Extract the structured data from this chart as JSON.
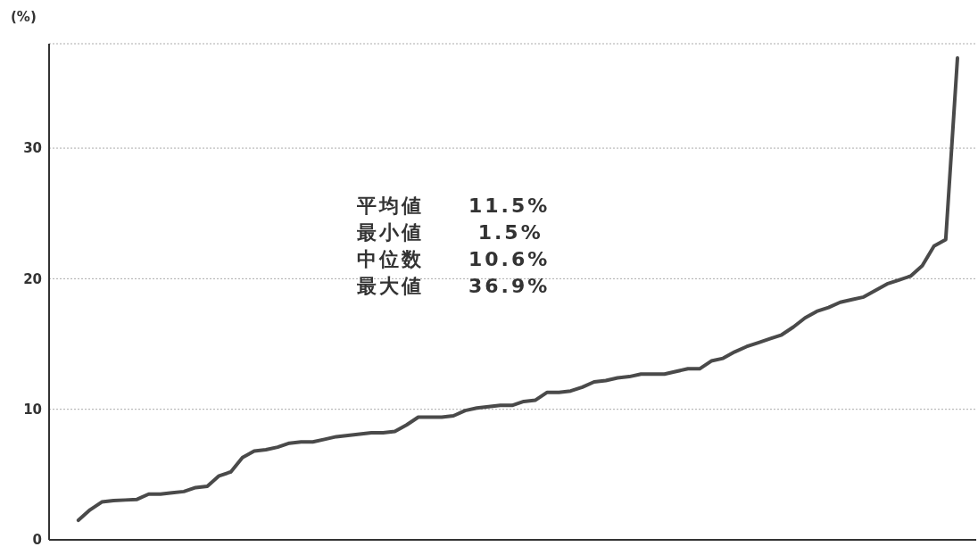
{
  "chart_data": {
    "type": "line",
    "ylabel": "(%)",
    "categories": [
      null,
      null,
      null,
      null,
      null,
      null,
      null,
      null,
      null,
      null,
      null,
      null,
      null,
      null,
      null,
      null,
      null,
      null,
      null,
      null,
      null,
      null,
      null,
      null,
      null,
      null,
      null,
      null,
      null,
      null,
      null,
      null,
      null,
      null,
      null,
      null,
      null,
      null,
      null,
      null,
      null,
      null,
      null,
      null,
      null,
      null,
      null,
      null,
      null,
      null,
      null,
      null,
      null,
      null,
      null,
      null,
      null,
      null,
      null,
      null,
      null,
      null,
      null,
      null,
      null,
      null,
      null,
      null,
      null,
      null,
      null,
      null,
      null,
      null,
      null,
      null
    ],
    "series": [
      {
        "color": "#4a4a4a",
        "values": [
          1.5,
          2.3,
          2.9,
          3.0,
          3.05,
          3.1,
          3.5,
          3.5,
          3.6,
          3.7,
          4.0,
          4.1,
          4.9,
          5.2,
          6.3,
          6.8,
          6.9,
          7.1,
          7.4,
          7.5,
          7.5,
          7.7,
          7.9,
          8.0,
          8.1,
          8.2,
          8.2,
          8.3,
          8.8,
          9.4,
          9.4,
          9.4,
          9.5,
          9.9,
          10.1,
          10.2,
          10.3,
          10.3,
          10.6,
          10.7,
          11.3,
          11.3,
          11.4,
          11.7,
          12.1,
          12.2,
          12.4,
          12.5,
          12.7,
          12.7,
          12.7,
          12.9,
          13.1,
          13.1,
          13.7,
          13.9,
          14.4,
          14.8,
          15.1,
          15.4,
          15.7,
          16.3,
          17.0,
          17.5,
          17.8,
          18.2,
          18.4,
          18.6,
          19.1,
          19.6,
          19.9,
          20.2,
          21.0,
          22.5,
          23.0,
          36.9
        ]
      }
    ],
    "ylim": [
      0,
      38
    ],
    "yticks": [
      0,
      10,
      20,
      30
    ],
    "grid": "y",
    "marker": "none",
    "line_style": "solid",
    "legend": false,
    "annotations": [
      "平均値　　11.5%",
      "最小値　　 1.5%",
      "中位数　　10.6%",
      "最大値　　36.9%"
    ]
  }
}
